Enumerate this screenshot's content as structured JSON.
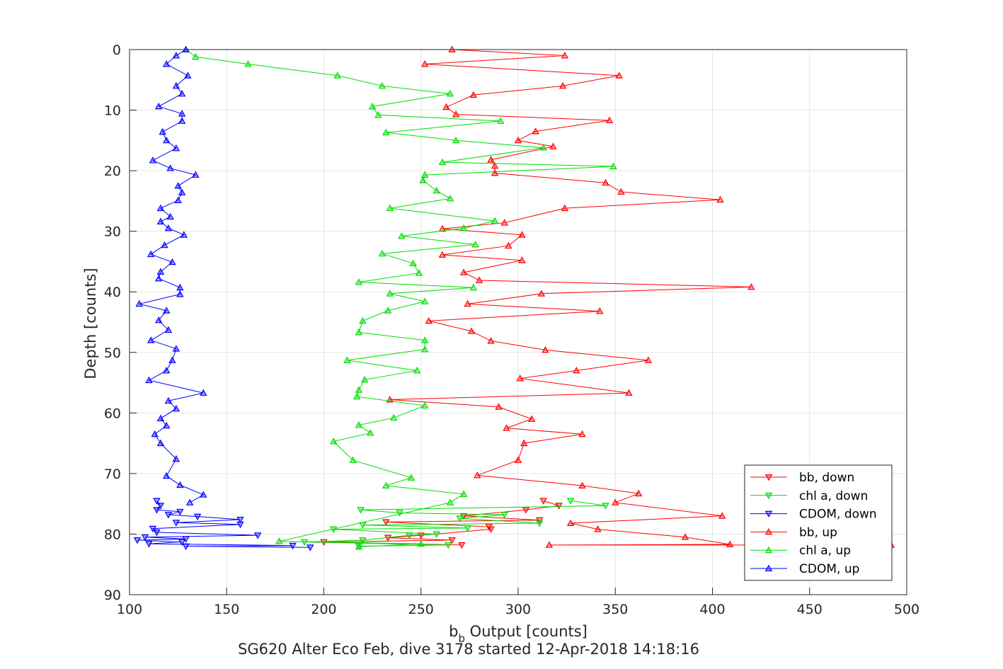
{
  "chart_data": {
    "type": "line",
    "xlabel_main": "b",
    "xlabel_sub": "b",
    "xlabel_rest": " Output [counts]",
    "ylabel": "Depth [counts]",
    "caption": "SG620 Alter Eco Feb, dive 3178 started 12-Apr-2018 14:18:16",
    "xlim": [
      100,
      500
    ],
    "ylim": [
      0,
      90
    ],
    "y_reversed": true,
    "xticks": [
      100,
      150,
      200,
      250,
      300,
      350,
      400,
      450,
      500
    ],
    "yticks": [
      0,
      10,
      20,
      30,
      40,
      50,
      60,
      70,
      80,
      90
    ],
    "grid": true,
    "legend_placement": "bottom-right",
    "series": [
      {
        "name": "bb, down",
        "color": "#ff0000",
        "marker": "down",
        "points": [
          [
            313,
            74.5
          ],
          [
            321,
            75.3
          ],
          [
            304,
            76
          ],
          [
            272,
            77
          ],
          [
            311,
            77.7
          ],
          [
            232,
            78
          ],
          [
            285,
            78.8
          ],
          [
            286,
            79.2
          ],
          [
            250,
            80.2
          ],
          [
            233,
            80.6
          ],
          [
            266,
            81
          ],
          [
            200,
            81.3
          ],
          [
            271,
            81.8
          ]
        ]
      },
      {
        "name": "chl a, down",
        "color": "#00dd00",
        "marker": "down",
        "points": [
          [
            327,
            74.5
          ],
          [
            345,
            75.3
          ],
          [
            219,
            76
          ],
          [
            239,
            76.5
          ],
          [
            293,
            76.8
          ],
          [
            270,
            77.4
          ],
          [
            311,
            78.2
          ],
          [
            220,
            78.5
          ],
          [
            274,
            79
          ],
          [
            205,
            79.2
          ],
          [
            258,
            80
          ],
          [
            244,
            80.2
          ],
          [
            220,
            81
          ],
          [
            190,
            81.3
          ],
          [
            264,
            81.8
          ],
          [
            218,
            82
          ]
        ]
      },
      {
        "name": "CDOM, down",
        "color": "#0000ff",
        "marker": "down",
        "points": [
          [
            114,
            74.5
          ],
          [
            116,
            75.3
          ],
          [
            114,
            76
          ],
          [
            126,
            76.3
          ],
          [
            120,
            76.8
          ],
          [
            135,
            77.1
          ],
          [
            157,
            77.6
          ],
          [
            124,
            78.1
          ],
          [
            157,
            78.4
          ],
          [
            112,
            79.1
          ],
          [
            114,
            79.7
          ],
          [
            166,
            80.2
          ],
          [
            108,
            80.5
          ],
          [
            129,
            80.8
          ],
          [
            104,
            81
          ],
          [
            127,
            81.3
          ],
          [
            110,
            81.6
          ],
          [
            184,
            81.9
          ],
          [
            129,
            82
          ],
          [
            193,
            82.2
          ]
        ]
      },
      {
        "name": "bb, up",
        "color": "#ff0000",
        "marker": "up",
        "points": [
          [
            266,
            0
          ],
          [
            324,
            1
          ],
          [
            252,
            2.4
          ],
          [
            352,
            4.3
          ],
          [
            323,
            6
          ],
          [
            277,
            7.5
          ],
          [
            263,
            9.5
          ],
          [
            268,
            10.7
          ],
          [
            347,
            11.7
          ],
          [
            309,
            13.5
          ],
          [
            300,
            15
          ],
          [
            318,
            16
          ],
          [
            286,
            18.2
          ],
          [
            288,
            19.2
          ],
          [
            288,
            20.4
          ],
          [
            345,
            22
          ],
          [
            353,
            23.5
          ],
          [
            404,
            24.8
          ],
          [
            324,
            26.2
          ],
          [
            293,
            28.6
          ],
          [
            261,
            29.6
          ],
          [
            302,
            30.6
          ],
          [
            295,
            32.4
          ],
          [
            261,
            33.9
          ],
          [
            302,
            34.8
          ],
          [
            272,
            36.8
          ],
          [
            280,
            38.1
          ],
          [
            420,
            39.2
          ],
          [
            312,
            40.3
          ],
          [
            274,
            42
          ],
          [
            342,
            43.2
          ],
          [
            254,
            44.8
          ],
          [
            276,
            46.5
          ],
          [
            286,
            48.1
          ],
          [
            314,
            49.6
          ],
          [
            367,
            51.3
          ],
          [
            330,
            53
          ],
          [
            301,
            54.3
          ],
          [
            357,
            56.7
          ],
          [
            234,
            57.8
          ],
          [
            290,
            59
          ],
          [
            307,
            61
          ],
          [
            294,
            62.5
          ],
          [
            333,
            63.5
          ],
          [
            303,
            65
          ],
          [
            300,
            67.8
          ],
          [
            279,
            70.3
          ],
          [
            333,
            72
          ],
          [
            362,
            73.3
          ],
          [
            350,
            74.8
          ],
          [
            405,
            77
          ],
          [
            327,
            78.2
          ],
          [
            341,
            79.2
          ],
          [
            386,
            80.5
          ],
          [
            409,
            81.7
          ],
          [
            316,
            81.8
          ],
          [
            492,
            81.8
          ]
        ]
      },
      {
        "name": "chl a, up",
        "color": "#00dd00",
        "marker": "up",
        "points": [
          [
            129,
            0
          ],
          [
            134,
            1.2
          ],
          [
            161,
            2.4
          ],
          [
            207,
            4.3
          ],
          [
            230,
            6
          ],
          [
            265,
            7.3
          ],
          [
            225,
            9.4
          ],
          [
            228,
            10.8
          ],
          [
            291,
            11.8
          ],
          [
            232,
            13.7
          ],
          [
            268,
            15
          ],
          [
            313,
            16.2
          ],
          [
            261,
            18.6
          ],
          [
            349,
            19.3
          ],
          [
            252,
            20.7
          ],
          [
            251,
            21.6
          ],
          [
            258,
            23.3
          ],
          [
            265,
            24.6
          ],
          [
            234,
            26.2
          ],
          [
            288,
            28.3
          ],
          [
            272,
            29.5
          ],
          [
            240,
            30.8
          ],
          [
            278,
            32.2
          ],
          [
            230,
            33.7
          ],
          [
            246,
            35.3
          ],
          [
            249,
            36.9
          ],
          [
            218,
            38.4
          ],
          [
            277,
            39.3
          ],
          [
            234,
            40.3
          ],
          [
            252,
            41.6
          ],
          [
            233,
            43.1
          ],
          [
            220,
            44.8
          ],
          [
            218,
            46.7
          ],
          [
            252,
            48
          ],
          [
            252,
            49.5
          ],
          [
            212,
            51.3
          ],
          [
            248,
            53
          ],
          [
            221,
            54.5
          ],
          [
            218,
            56.2
          ],
          [
            217,
            57.3
          ],
          [
            252,
            58.8
          ],
          [
            236,
            60.8
          ],
          [
            218,
            62
          ],
          [
            224,
            63.3
          ],
          [
            205,
            64.7
          ],
          [
            215,
            67.8
          ],
          [
            245,
            70.7
          ],
          [
            232,
            72
          ],
          [
            272,
            73.4
          ],
          [
            265,
            74.8
          ],
          [
            177,
            81.2
          ],
          [
            250,
            81.6
          ],
          [
            218,
            82.1
          ]
        ]
      },
      {
        "name": "CDOM, up",
        "color": "#0000ff",
        "marker": "up",
        "points": [
          [
            129,
            0
          ],
          [
            124,
            1
          ],
          [
            119,
            2.4
          ],
          [
            130,
            4.3
          ],
          [
            124,
            6
          ],
          [
            127,
            7.3
          ],
          [
            115,
            9.4
          ],
          [
            127,
            10.6
          ],
          [
            127,
            11.8
          ],
          [
            117,
            13.6
          ],
          [
            119,
            15
          ],
          [
            124,
            16.3
          ],
          [
            112,
            18.3
          ],
          [
            121,
            19.6
          ],
          [
            134,
            20.7
          ],
          [
            125,
            22.5
          ],
          [
            127,
            23.6
          ],
          [
            125,
            24.9
          ],
          [
            116,
            26.2
          ],
          [
            121,
            27.6
          ],
          [
            116,
            28.4
          ],
          [
            120,
            29.5
          ],
          [
            128,
            30.6
          ],
          [
            118,
            32.3
          ],
          [
            111,
            33.8
          ],
          [
            122,
            35.1
          ],
          [
            116,
            36.7
          ],
          [
            115,
            37.8
          ],
          [
            126,
            39.3
          ],
          [
            126,
            40.4
          ],
          [
            105,
            42
          ],
          [
            119,
            43.1
          ],
          [
            115,
            44.7
          ],
          [
            120,
            46.3
          ],
          [
            111,
            48
          ],
          [
            124,
            49.4
          ],
          [
            122,
            51.3
          ],
          [
            119,
            53
          ],
          [
            110,
            54.6
          ],
          [
            138,
            56.7
          ],
          [
            120,
            58
          ],
          [
            124,
            59.3
          ],
          [
            116,
            60.9
          ],
          [
            119,
            62.1
          ],
          [
            113,
            63.5
          ],
          [
            116,
            65
          ],
          [
            124,
            67.6
          ],
          [
            119,
            70.4
          ],
          [
            126,
            71.9
          ],
          [
            138,
            73.5
          ],
          [
            131,
            74.8
          ]
        ]
      }
    ]
  }
}
